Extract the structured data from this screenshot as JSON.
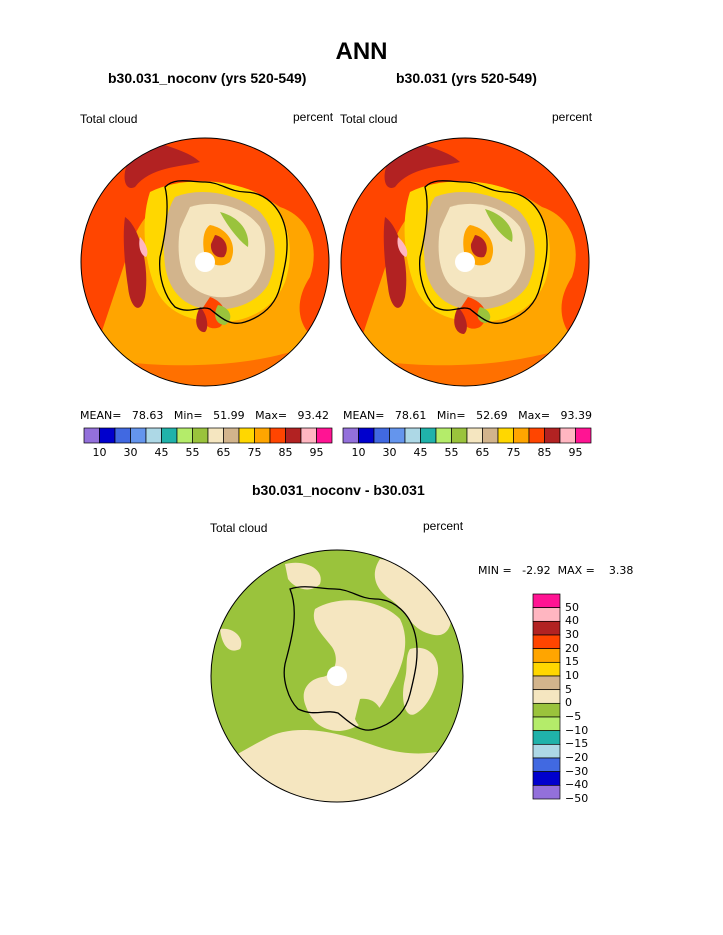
{
  "main_title": "ANN",
  "panel_left": {
    "case_title": "b30.031_noconv (yrs 520-549)",
    "field_label": "Total cloud",
    "units": "percent",
    "stats": "MEAN=   78.63   Min=   51.99   Max=   93.42"
  },
  "panel_right": {
    "case_title": "b30.031 (yrs 520-549)",
    "field_label": "Total cloud",
    "units": "percent",
    "stats": "MEAN=   78.61   Min=   52.69   Max=   93.39"
  },
  "panel_diff": {
    "case_title": "b30.031_noconv - b30.031",
    "field_label": "Total cloud",
    "units": "percent",
    "stats": "MIN =   -2.92  MAX =    3.38"
  },
  "colorbar_top": {
    "colors": [
      "#9370db",
      "#0000cd",
      "#4169e1",
      "#6495ed",
      "#add8e6",
      "#20b2aa",
      "#b4ec6a",
      "#9ac33c",
      "#f5e6c0",
      "#d2b48c",
      "#ffd700",
      "#ffa500",
      "#ff4500",
      "#b22222",
      "#ffb6c1",
      "#ff1493"
    ],
    "labels": [
      "10",
      "30",
      "45",
      "55",
      "65",
      "75",
      "85",
      "95"
    ]
  },
  "colorbar_diff": {
    "colors": [
      "#ff1493",
      "#ffb6c1",
      "#b22222",
      "#ff4500",
      "#ffa500",
      "#ffd700",
      "#d2b48c",
      "#f5e6c0",
      "#9ac33c",
      "#b4ec6a",
      "#20b2aa",
      "#add8e6",
      "#4169e1",
      "#0000cd",
      "#9370db"
    ],
    "labels": [
      "50",
      "40",
      "30",
      "20",
      "15",
      "10",
      "5",
      "0",
      "−5",
      "−10",
      "−15",
      "−20",
      "−30",
      "−40",
      "−50"
    ]
  }
}
